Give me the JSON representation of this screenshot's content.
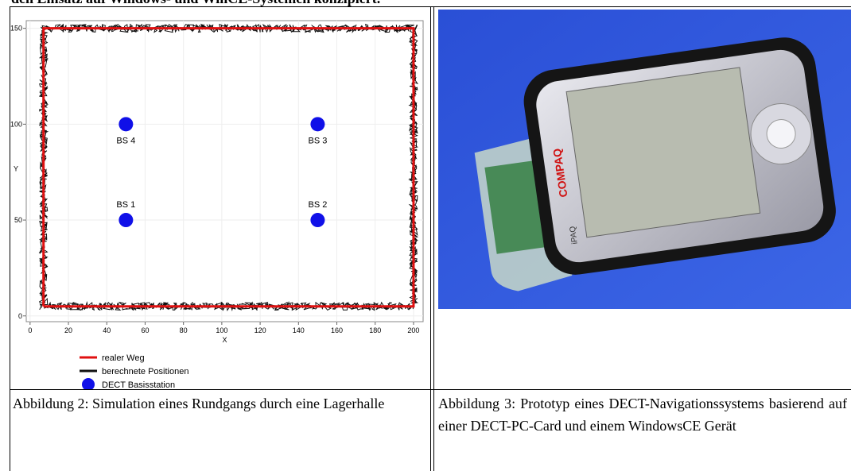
{
  "intro_text": "den Einsatz auf Windows- und WinCE-Systemen konzipiert.",
  "figure_left": {
    "chart_data": {
      "type": "scatter",
      "x_label": "X",
      "y_label": "Y",
      "xlim": [
        -2,
        205
      ],
      "ylim": [
        -3,
        154
      ],
      "xticks": [
        0,
        20,
        40,
        60,
        80,
        100,
        120,
        140,
        160,
        180,
        200
      ],
      "yticks": [
        0,
        50,
        100,
        150
      ],
      "grid": true,
      "series": [
        {
          "name": "realer Weg",
          "color": "#e01010",
          "x": [
            7,
            200,
            200,
            7,
            7
          ],
          "y": [
            5,
            5,
            150,
            150,
            5
          ]
        },
        {
          "name": "berechnete Positionen",
          "color": "#111111"
        },
        {
          "name": "DECT Basisstation",
          "color": "#1010e8",
          "x": [
            50,
            150,
            150,
            50
          ],
          "y": [
            50,
            50,
            100,
            100
          ],
          "point_labels": [
            "BS 1",
            "BS 2",
            "BS 3",
            "BS 4"
          ]
        }
      ]
    },
    "caption": "Abbildung 2: Simulation eines Rundgangs durch eine Lagerhalle"
  },
  "figure_right": {
    "device_brand": "COMPAQ",
    "device_model": "iPAQ",
    "caption": "Abbildung 3: Prototyp eines DECT-Navigationssystems basierend auf einer DECT-PC-Card und einem WindowsCE Gerät"
  }
}
